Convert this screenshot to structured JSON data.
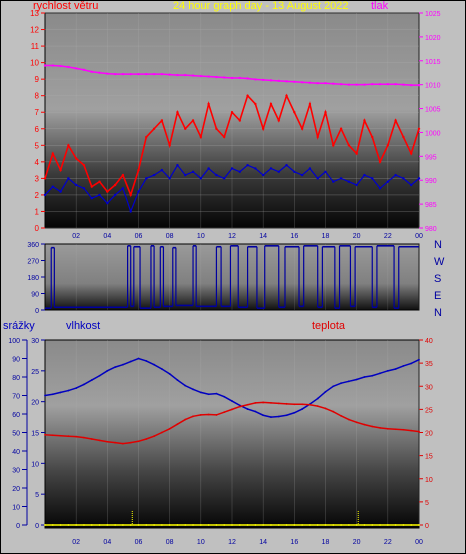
{
  "header": {
    "wind_title": "rychlost větru",
    "date_title": "24 hour graph day - 13 August 2022",
    "pressure_title": "tlak",
    "rain_title": "srážky",
    "humidity_title": "vlhkost",
    "temperature_title": "teplota"
  },
  "colors": {
    "background": "#c0c0c0",
    "wind": "#ff0000",
    "gust": "#0000cc",
    "pressure": "#ff00ff",
    "direction": "#0000a0",
    "humidity": "#0000c0",
    "temperature": "#e00000",
    "rain": "#ffff00",
    "title_yellow": "#ffff00"
  },
  "chart_data": [
    {
      "type": "line",
      "title": "24 hour graph day - 13 August 2022",
      "ylabel": "rychlost větru",
      "y2label": "tlak",
      "ylim": [
        0,
        13
      ],
      "y2lim": [
        980,
        1025
      ],
      "yticks": [
        0,
        1,
        2,
        3,
        4,
        5,
        6,
        7,
        8,
        9,
        10,
        11,
        12,
        13
      ],
      "y2ticks": [
        980,
        985,
        990,
        995,
        1000,
        1005,
        1010,
        1015,
        1020,
        1025
      ],
      "xticks": [
        "02",
        "04",
        "06",
        "08",
        "10",
        "12",
        "14",
        "16",
        "18",
        "20",
        "22",
        "00"
      ],
      "x": [
        0,
        0.5,
        1,
        1.5,
        2,
        2.5,
        3,
        3.5,
        4,
        4.5,
        5,
        5.5,
        6,
        6.5,
        7,
        7.5,
        8,
        8.5,
        9,
        9.5,
        10,
        10.5,
        11,
        11.5,
        12,
        12.5,
        13,
        13.5,
        14,
        14.5,
        15,
        15.5,
        16,
        16.5,
        17,
        17.5,
        18,
        18.5,
        19,
        19.5,
        20,
        20.5,
        21,
        21.5,
        22,
        22.5,
        23,
        23.5,
        24
      ],
      "series": [
        {
          "name": "wind",
          "axis": "left",
          "values": [
            3.0,
            4.5,
            3.5,
            5.0,
            4.2,
            3.8,
            2.5,
            2.8,
            2.2,
            2.6,
            3.2,
            2.0,
            3.5,
            5.5,
            6.0,
            6.5,
            5.0,
            7.0,
            6.0,
            6.5,
            5.5,
            7.5,
            6.0,
            5.5,
            7.0,
            6.5,
            8.0,
            7.5,
            6.0,
            7.5,
            6.5,
            8.0,
            7.0,
            6.0,
            7.5,
            5.5,
            7.0,
            5.0,
            6.0,
            5.0,
            4.5,
            6.5,
            5.5,
            4.0,
            5.0,
            6.5,
            5.5,
            4.5,
            6.0
          ]
        },
        {
          "name": "gust",
          "axis": "left",
          "values": [
            2.0,
            2.5,
            2.2,
            3.0,
            2.6,
            2.4,
            1.8,
            2.0,
            1.5,
            2.0,
            2.4,
            1.0,
            2.2,
            3.0,
            3.2,
            3.5,
            3.0,
            3.8,
            3.2,
            3.4,
            3.0,
            3.6,
            3.2,
            3.0,
            3.6,
            3.4,
            3.8,
            3.6,
            3.2,
            3.6,
            3.4,
            3.8,
            3.4,
            3.2,
            3.6,
            3.0,
            3.4,
            2.8,
            3.0,
            2.8,
            2.6,
            3.2,
            3.0,
            2.4,
            2.8,
            3.2,
            3.0,
            2.6,
            3.0
          ]
        },
        {
          "name": "pressure",
          "axis": "right",
          "values": [
            1014.0,
            1014.0,
            1013.9,
            1013.7,
            1013.4,
            1013.1,
            1012.7,
            1012.5,
            1012.3,
            1012.2,
            1012.2,
            1012.2,
            1012.2,
            1012.2,
            1012.2,
            1012.2,
            1012.1,
            1012.0,
            1012.0,
            1011.9,
            1011.8,
            1011.7,
            1011.6,
            1011.5,
            1011.4,
            1011.4,
            1011.3,
            1011.1,
            1011.0,
            1010.9,
            1010.8,
            1010.7,
            1010.6,
            1010.5,
            1010.4,
            1010.3,
            1010.3,
            1010.2,
            1010.1,
            1010.0,
            1010.0,
            1010.0,
            1010.1,
            1010.1,
            1010.1,
            1010.1,
            1010.0,
            1009.9,
            1009.9
          ]
        }
      ]
    },
    {
      "type": "line",
      "yticks": [
        0,
        90,
        180,
        270,
        360
      ],
      "y2ticks": [
        "N",
        "W",
        "S",
        "E",
        "N"
      ],
      "ylim": [
        0,
        360
      ],
      "segments": [
        {
          "start": 0,
          "end": 0.4,
          "value": 10
        },
        {
          "start": 0.4,
          "end": 0.6,
          "value": 340
        },
        {
          "start": 0.6,
          "end": 5.3,
          "value": 15
        },
        {
          "start": 5.3,
          "end": 5.5,
          "value": 350
        },
        {
          "start": 5.5,
          "end": 5.7,
          "value": 20
        },
        {
          "start": 5.7,
          "end": 6.1,
          "value": 345
        },
        {
          "start": 6.1,
          "end": 6.8,
          "value": 10
        },
        {
          "start": 6.8,
          "end": 7.0,
          "value": 350
        },
        {
          "start": 7.0,
          "end": 7.4,
          "value": 15
        },
        {
          "start": 7.4,
          "end": 7.6,
          "value": 345
        },
        {
          "start": 7.6,
          "end": 8.2,
          "value": 20
        },
        {
          "start": 8.2,
          "end": 8.4,
          "value": 340
        },
        {
          "start": 8.4,
          "end": 9.5,
          "value": 25
        },
        {
          "start": 9.5,
          "end": 9.7,
          "value": 350
        },
        {
          "start": 9.7,
          "end": 11.0,
          "value": 20
        },
        {
          "start": 11.0,
          "end": 11.3,
          "value": 345
        },
        {
          "start": 11.3,
          "end": 11.9,
          "value": 20
        },
        {
          "start": 11.9,
          "end": 12.4,
          "value": 350
        },
        {
          "start": 12.4,
          "end": 13.0,
          "value": 15
        },
        {
          "start": 13.0,
          "end": 13.6,
          "value": 345
        },
        {
          "start": 13.6,
          "end": 14.1,
          "value": 10
        },
        {
          "start": 14.1,
          "end": 15.0,
          "value": 350
        },
        {
          "start": 15.0,
          "end": 15.4,
          "value": 15
        },
        {
          "start": 15.4,
          "end": 16.3,
          "value": 345
        },
        {
          "start": 16.3,
          "end": 16.6,
          "value": 20
        },
        {
          "start": 16.6,
          "end": 17.5,
          "value": 350
        },
        {
          "start": 17.5,
          "end": 17.8,
          "value": 15
        },
        {
          "start": 17.8,
          "end": 18.6,
          "value": 345
        },
        {
          "start": 18.6,
          "end": 18.9,
          "value": 10
        },
        {
          "start": 18.9,
          "end": 19.6,
          "value": 350
        },
        {
          "start": 19.6,
          "end": 19.9,
          "value": 20
        },
        {
          "start": 19.9,
          "end": 21.0,
          "value": 345
        },
        {
          "start": 21.0,
          "end": 21.3,
          "value": 15
        },
        {
          "start": 21.3,
          "end": 22.4,
          "value": 350
        },
        {
          "start": 22.4,
          "end": 22.7,
          "value": 10
        },
        {
          "start": 22.7,
          "end": 24.0,
          "value": 345
        }
      ]
    },
    {
      "type": "line",
      "y1label": "srážky",
      "y2label": "vlhkost",
      "y3label": "teplota",
      "rain_ticks": [
        0,
        10,
        20,
        30,
        40,
        50,
        60,
        70,
        80,
        90,
        100
      ],
      "humidity_ticks": [
        0,
        5,
        10,
        15,
        20,
        25,
        30
      ],
      "temperature_ticks": [
        0,
        5,
        10,
        15,
        20,
        25,
        30,
        35,
        40
      ],
      "xticks": [
        "02",
        "04",
        "06",
        "08",
        "10",
        "12",
        "14",
        "16",
        "18",
        "20",
        "22",
        "00"
      ],
      "x": [
        0,
        0.5,
        1,
        1.5,
        2,
        2.5,
        3,
        3.5,
        4,
        4.5,
        5,
        5.5,
        6,
        6.5,
        7,
        7.5,
        8,
        8.5,
        9,
        9.5,
        10,
        10.5,
        11,
        11.5,
        12,
        12.5,
        13,
        13.5,
        14,
        14.5,
        15,
        15.5,
        16,
        16.5,
        17,
        17.5,
        18,
        18.5,
        19,
        19.5,
        20,
        20.5,
        21,
        21.5,
        22,
        22.5,
        23,
        23.5,
        24
      ],
      "series": [
        {
          "name": "vlhkost",
          "axis": "humidity",
          "values": [
            21.0,
            21.2,
            21.5,
            21.8,
            22.2,
            22.8,
            23.5,
            24.2,
            25.0,
            25.6,
            26.0,
            26.5,
            27.0,
            26.6,
            26.0,
            25.3,
            24.5,
            23.5,
            22.6,
            22.0,
            21.5,
            21.2,
            21.3,
            20.8,
            20.1,
            19.4,
            18.8,
            18.4,
            17.8,
            17.5,
            17.6,
            17.8,
            18.2,
            18.8,
            19.6,
            20.5,
            21.6,
            22.5,
            23.0,
            23.3,
            23.6,
            24.0,
            24.2,
            24.6,
            25.0,
            25.3,
            25.8,
            26.2,
            26.8
          ]
        },
        {
          "name": "teplota",
          "axis": "temperature",
          "values": [
            19.5,
            19.4,
            19.3,
            19.2,
            19.1,
            18.9,
            18.6,
            18.3,
            18.0,
            17.8,
            17.6,
            17.8,
            18.1,
            18.6,
            19.2,
            20.0,
            20.8,
            21.8,
            22.8,
            23.5,
            23.8,
            23.9,
            23.8,
            24.4,
            25.0,
            25.6,
            26.0,
            26.4,
            26.5,
            26.4,
            26.3,
            26.2,
            26.1,
            26.1,
            26.0,
            25.7,
            25.2,
            24.5,
            23.6,
            22.8,
            22.2,
            21.7,
            21.3,
            21.0,
            20.8,
            20.7,
            20.6,
            20.4,
            20.2
          ]
        },
        {
          "name": "srážky",
          "axis": "rain",
          "values": [
            0,
            0,
            0,
            0,
            0,
            0,
            0,
            0,
            0,
            0,
            0,
            0,
            0,
            0,
            0,
            0,
            0,
            0,
            0,
            0,
            0,
            0,
            0,
            0,
            0,
            0,
            0,
            0,
            0,
            0,
            0,
            0,
            0,
            0,
            0,
            0,
            0,
            0,
            0,
            0,
            0,
            0,
            0,
            0,
            0,
            0,
            0,
            0,
            0
          ]
        }
      ]
    }
  ]
}
